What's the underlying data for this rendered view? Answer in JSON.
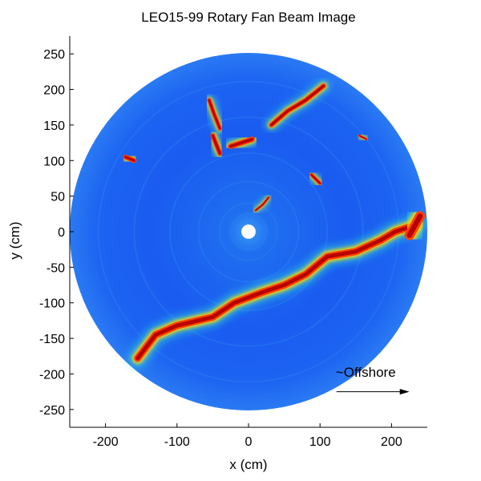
{
  "chart_data": {
    "type": "heatmap",
    "title": "LEO15-99 Rotary Fan Beam Image",
    "xlabel": "x (cm)",
    "ylabel": "y (cm)",
    "xlim": [
      -250,
      250
    ],
    "ylim": [
      -275,
      275
    ],
    "xticks": [
      -200,
      -100,
      0,
      100,
      200
    ],
    "yticks": [
      -250,
      -200,
      -150,
      -100,
      -50,
      0,
      50,
      100,
      150,
      200,
      250
    ],
    "grid": false,
    "image_radius": 250,
    "center_hole_radius": 10,
    "colors": {
      "background": "#1a5bf0",
      "ring": "#2f86f0",
      "hole": "#ffffff",
      "ridge_core": "#b80000",
      "ridge_mid": "#ff4000",
      "ridge_edge": "#ffd200",
      "halo": "#32e6d2"
    },
    "annotations": [
      {
        "text": "~Offshore",
        "x": 164,
        "y": -204
      }
    ],
    "arrow": {
      "from": [
        123,
        -225
      ],
      "to": [
        225,
        -225
      ]
    },
    "features": [
      {
        "name": "sand-ridge",
        "width": 12,
        "points": [
          [
            -155,
            -178
          ],
          [
            -130,
            -145
          ],
          [
            -100,
            -132
          ],
          [
            -50,
            -120
          ],
          [
            -20,
            -100
          ],
          [
            20,
            -85
          ],
          [
            50,
            -75
          ],
          [
            80,
            -60
          ],
          [
            110,
            -35
          ],
          [
            150,
            -28
          ],
          [
            185,
            -12
          ],
          [
            205,
            0
          ],
          [
            235,
            10
          ]
        ]
      },
      {
        "name": "ridge-end",
        "width": 16,
        "points": [
          [
            225,
            -5
          ],
          [
            240,
            22
          ]
        ]
      },
      {
        "name": "upper-right-streak",
        "width": 8,
        "points": [
          [
            32,
            150
          ],
          [
            55,
            170
          ],
          [
            80,
            185
          ],
          [
            105,
            205
          ]
        ]
      },
      {
        "name": "upper-left-streak",
        "width": 7,
        "points": [
          [
            -55,
            185
          ],
          [
            -48,
            165
          ],
          [
            -40,
            145
          ]
        ]
      },
      {
        "name": "center-blob",
        "width": 9,
        "points": [
          [
            -25,
            120
          ],
          [
            -10,
            125
          ],
          [
            5,
            130
          ]
        ]
      },
      {
        "name": "center-left-blob",
        "width": 8,
        "points": [
          [
            -50,
            135
          ],
          [
            -40,
            110
          ]
        ]
      },
      {
        "name": "near-center",
        "width": 4,
        "points": [
          [
            10,
            30
          ],
          [
            20,
            38
          ],
          [
            28,
            48
          ]
        ]
      },
      {
        "name": "right-spot",
        "width": 6,
        "points": [
          [
            88,
            80
          ],
          [
            100,
            68
          ]
        ]
      },
      {
        "name": "far-left-spot",
        "width": 8,
        "points": [
          [
            -172,
            105
          ],
          [
            -160,
            100
          ]
        ]
      },
      {
        "name": "faint-right-dot",
        "width": 4,
        "points": [
          [
            155,
            135
          ],
          [
            165,
            130
          ]
        ]
      }
    ]
  }
}
